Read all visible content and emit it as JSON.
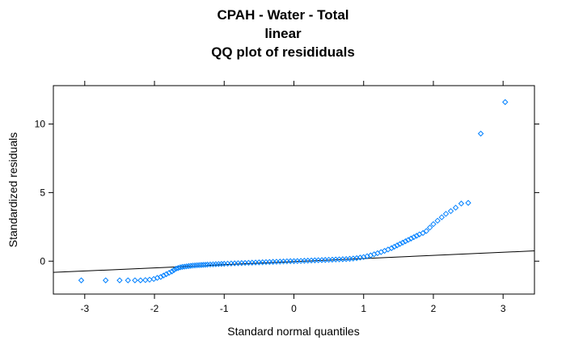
{
  "title_lines": [
    "CPAH - Water - Total",
    "linear",
    "QQ plot of resididuals"
  ],
  "chart_data": {
    "type": "scatter",
    "title": "CPAH - Water - Total / linear / QQ plot of resididuals",
    "xlabel": "Standard normal quantiles",
    "ylabel": "Standardized residuals",
    "xlim": [
      -3.45,
      3.45
    ],
    "ylim": [
      -2.4,
      12.8
    ],
    "xticks": [
      -3,
      -2,
      -1,
      0,
      1,
      2,
      3
    ],
    "yticks": [
      0,
      5,
      10
    ],
    "marker_color": "#0080ff",
    "reference_line": {
      "x": [
        -3.45,
        3.45
      ],
      "y": [
        -0.82,
        0.75
      ]
    },
    "points": {
      "x": [
        -3.05,
        -2.7,
        -2.5,
        -2.38,
        -2.28,
        -2.2,
        -2.13,
        -2.07,
        -2.01,
        -1.96,
        -1.91,
        -1.87,
        -1.83,
        -1.79,
        -1.75,
        -1.72,
        -1.69,
        -1.66,
        -1.63,
        -1.6,
        -1.57,
        -1.54,
        -1.51,
        -1.48,
        -1.45,
        -1.42,
        -1.39,
        -1.36,
        -1.33,
        -1.3,
        -1.27,
        -1.24,
        -1.2,
        -1.16,
        -1.12,
        -1.08,
        -1.04,
        -1.0,
        -0.95,
        -0.9,
        -0.85,
        -0.8,
        -0.75,
        -0.7,
        -0.65,
        -0.6,
        -0.55,
        -0.5,
        -0.45,
        -0.4,
        -0.35,
        -0.3,
        -0.25,
        -0.2,
        -0.15,
        -0.1,
        -0.05,
        0.0,
        0.05,
        0.1,
        0.15,
        0.2,
        0.25,
        0.3,
        0.35,
        0.4,
        0.45,
        0.5,
        0.55,
        0.6,
        0.65,
        0.7,
        0.75,
        0.8,
        0.85,
        0.9,
        0.95,
        1.0,
        1.05,
        1.1,
        1.15,
        1.2,
        1.25,
        1.3,
        1.35,
        1.4,
        1.44,
        1.48,
        1.52,
        1.56,
        1.6,
        1.64,
        1.68,
        1.72,
        1.76,
        1.8,
        1.85,
        1.9,
        1.95,
        2.0,
        2.06,
        2.12,
        2.18,
        2.25,
        2.32,
        2.4,
        2.5,
        2.68,
        3.03
      ],
      "y": [
        -1.4,
        -1.4,
        -1.4,
        -1.4,
        -1.4,
        -1.4,
        -1.38,
        -1.35,
        -1.3,
        -1.22,
        -1.15,
        -1.05,
        -0.95,
        -0.85,
        -0.75,
        -0.65,
        -0.55,
        -0.5,
        -0.45,
        -0.42,
        -0.4,
        -0.38,
        -0.36,
        -0.34,
        -0.32,
        -0.31,
        -0.3,
        -0.29,
        -0.28,
        -0.27,
        -0.26,
        -0.25,
        -0.24,
        -0.23,
        -0.22,
        -0.21,
        -0.2,
        -0.19,
        -0.18,
        -0.17,
        -0.16,
        -0.15,
        -0.14,
        -0.13,
        -0.12,
        -0.11,
        -0.1,
        -0.09,
        -0.08,
        -0.07,
        -0.06,
        -0.05,
        -0.04,
        -0.03,
        -0.02,
        -0.01,
        0.0,
        0.0,
        0.01,
        0.02,
        0.03,
        0.04,
        0.05,
        0.06,
        0.07,
        0.08,
        0.09,
        0.1,
        0.11,
        0.12,
        0.13,
        0.14,
        0.15,
        0.17,
        0.19,
        0.22,
        0.26,
        0.3,
        0.36,
        0.42,
        0.5,
        0.58,
        0.66,
        0.75,
        0.85,
        0.95,
        1.05,
        1.15,
        1.25,
        1.35,
        1.45,
        1.55,
        1.65,
        1.75,
        1.85,
        1.95,
        2.05,
        2.2,
        2.45,
        2.7,
        2.95,
        3.2,
        3.45,
        3.65,
        3.9,
        4.2,
        4.25,
        9.3,
        11.6
      ]
    }
  }
}
